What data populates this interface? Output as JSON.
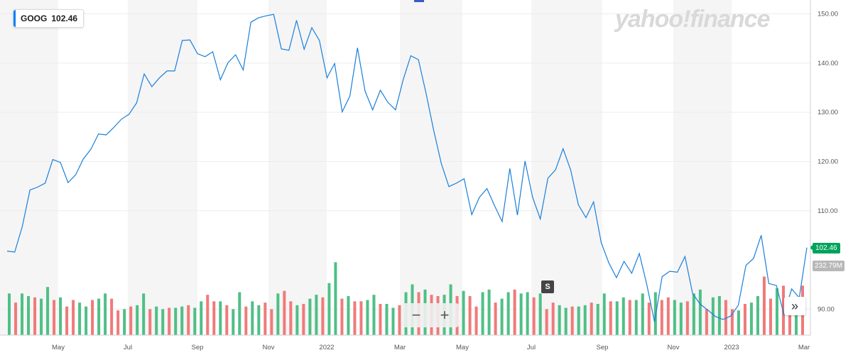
{
  "ticker": {
    "symbol": "GOOG",
    "price": "102.46"
  },
  "watermark": "yahoo!finance",
  "price_tag": "102.46",
  "volume_tag": "232.79M",
  "split_marker": "S",
  "zoom": {
    "minus": "−",
    "plus": "+"
  },
  "scroll_icon": "»",
  "colors": {
    "line": "#1a7fd9",
    "up": "#4fbf86",
    "down": "#f07a7a",
    "band": "#f5f5f5",
    "price_tag": "#00a35c"
  },
  "chart_data": {
    "type": "line",
    "title": "",
    "ylim": [
      85,
      151
    ],
    "y_ticks": [
      "150.00",
      "140.00",
      "130.00",
      "120.00",
      "110.00",
      "90.00"
    ],
    "x_ticks": [
      "May",
      "Jul",
      "Sep",
      "Nov",
      "2022",
      "Mar",
      "May",
      "Jul",
      "Sep",
      "Nov",
      "2023",
      "Mar"
    ],
    "grid": true,
    "series": [
      {
        "values": [
          101.8,
          101.6,
          106.8,
          114.2,
          114.8,
          115.6,
          120.4,
          119.8,
          115.7,
          117.3,
          120.5,
          122.5,
          125.6,
          125.4,
          126.9,
          128.6,
          129.6,
          131.9,
          137.8,
          135.2,
          137.0,
          138.4,
          138.4,
          144.6,
          144.7,
          141.9,
          141.3,
          142.3,
          136.6,
          140.1,
          141.7,
          138.6,
          148.3,
          149.2,
          149.6,
          149.9,
          142.9,
          142.6,
          148.7,
          142.8,
          147.2,
          144.6,
          137.0,
          139.9,
          130.1,
          133.3,
          143.1,
          134.3,
          130.5,
          134.5,
          132.0,
          130.5,
          136.6,
          141.5,
          140.7,
          133.9,
          126.4,
          119.6,
          114.9,
          115.6,
          116.5,
          109.2,
          112.7,
          114.5,
          111.0,
          107.8,
          118.6,
          109.1,
          120.1,
          112.7,
          108.3,
          116.6,
          118.3,
          122.6,
          118.2,
          111.2,
          108.6,
          111.8,
          103.5,
          99.4,
          96.4,
          99.7,
          97.3,
          101.3,
          94.9,
          87.4,
          96.6,
          97.7,
          97.5,
          100.7,
          93.2,
          91.0,
          89.8,
          88.5,
          87.9,
          88.6,
          90.8,
          98.9,
          100.3,
          105.0,
          95.2,
          94.8,
          88.9,
          94.1,
          92.3,
          102.5
        ]
      },
      {
        "name": "volume",
        "values": [
          32,
          25,
          32,
          30,
          29,
          28,
          37,
          27,
          29,
          22,
          27,
          25,
          22,
          27,
          28,
          32,
          28,
          19,
          20,
          22,
          23,
          32,
          20,
          22,
          20,
          21,
          21,
          22,
          23,
          21,
          26,
          31,
          26,
          26,
          23,
          20,
          33,
          22,
          26,
          23,
          25,
          20,
          32,
          34,
          26,
          23,
          24,
          28,
          31,
          29,
          40,
          56,
          28,
          30,
          26,
          26,
          27,
          31,
          24,
          24,
          21,
          23,
          33,
          39,
          33,
          35,
          31,
          30,
          31,
          39,
          30,
          34,
          30,
          22,
          33,
          35,
          25,
          28,
          33,
          35,
          32,
          33,
          29,
          32,
          20,
          25,
          23,
          21,
          22,
          22,
          23,
          25,
          24,
          32,
          26,
          26,
          29,
          27,
          27,
          32,
          25,
          33,
          27,
          29,
          27,
          25,
          26,
          32,
          35,
          20,
          29,
          30,
          27,
          20,
          19,
          24,
          25,
          30,
          45,
          28,
          36,
          38,
          22,
          28,
          38
        ]
      }
    ]
  }
}
